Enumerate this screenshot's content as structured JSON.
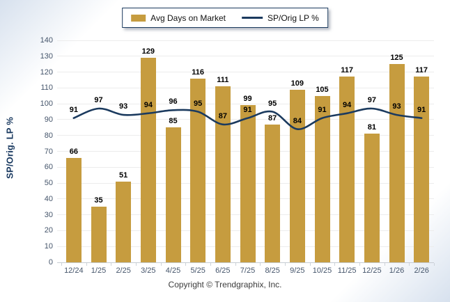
{
  "legend": {
    "bar_label": "Avg Days on Market",
    "line_label": "SP/Orig LP %"
  },
  "footer": {
    "copyright": "Copyright © Trendgraphix, Inc."
  },
  "colors": {
    "bar": "#C69C3F",
    "line": "#1B3A5E",
    "grid": "#ececec",
    "axis": "#c6cbd2",
    "tick_text": "#44546A",
    "value_text": "#000000",
    "background_edge": "#d7e1ee",
    "legend_border": "#1B3A5E",
    "copyright_text": "#3b3b3b"
  },
  "chart_data": {
    "type": "bar+line",
    "title": "",
    "xlabel": "",
    "ylabel": "SP/Orig. LP %",
    "ylim": [
      0,
      140
    ],
    "ytick_step": 10,
    "grid": true,
    "legend_position": "top-center",
    "categories": [
      "12/24",
      "1/25",
      "2/25",
      "3/25",
      "4/25",
      "5/25",
      "6/25",
      "7/25",
      "8/25",
      "9/25",
      "10/25",
      "11/25",
      "12/25",
      "1/26",
      "2/26"
    ],
    "series": [
      {
        "name": "Avg Days on Market",
        "type": "bar",
        "color": "#C69C3F",
        "values": [
          66,
          35,
          51,
          129,
          85,
          116,
          111,
          99,
          87,
          109,
          105,
          117,
          81,
          125,
          117
        ]
      },
      {
        "name": "SP/Orig LP %",
        "type": "line",
        "color": "#1B3A5E",
        "values": [
          91,
          97,
          93,
          94,
          96,
          95,
          87,
          91,
          95,
          84,
          91,
          94,
          97,
          93,
          91
        ]
      }
    ]
  }
}
